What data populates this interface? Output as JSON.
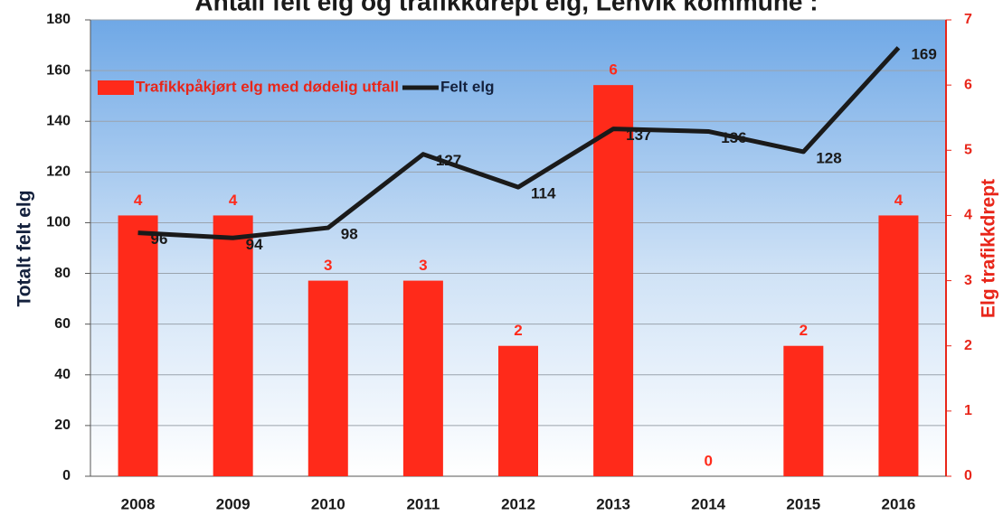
{
  "chart_data": {
    "type": "bar",
    "title": "Antall felt elg og trafikkdrept elg, Lenvik kommune :",
    "categories": [
      "2008",
      "2009",
      "2010",
      "2011",
      "2012",
      "2013",
      "2014",
      "2015",
      "2016"
    ],
    "series": [
      {
        "name": "Trafikkpåkjørt elg med dødelig utfall",
        "type": "bar",
        "axis": "y2",
        "color": "#ff2a1a",
        "values": [
          4,
          4,
          3,
          3,
          2,
          6,
          0,
          2,
          4
        ]
      },
      {
        "name": "Felt elg",
        "type": "line",
        "axis": "y",
        "color": "#1a1a1a",
        "values": [
          96,
          94,
          98,
          127,
          114,
          137,
          136,
          128,
          169
        ]
      }
    ],
    "ylabel": "Totalt  felt elg",
    "y2label": "Elg trafikkdrept",
    "ylim": [
      0,
      180
    ],
    "yticks": [
      0,
      20,
      40,
      60,
      80,
      100,
      120,
      140,
      160,
      180
    ],
    "y2lim": [
      0,
      7
    ],
    "y2ticks": [
      0,
      1,
      2,
      3,
      4,
      5,
      6,
      7
    ],
    "grid": true,
    "legend": "top-left"
  }
}
